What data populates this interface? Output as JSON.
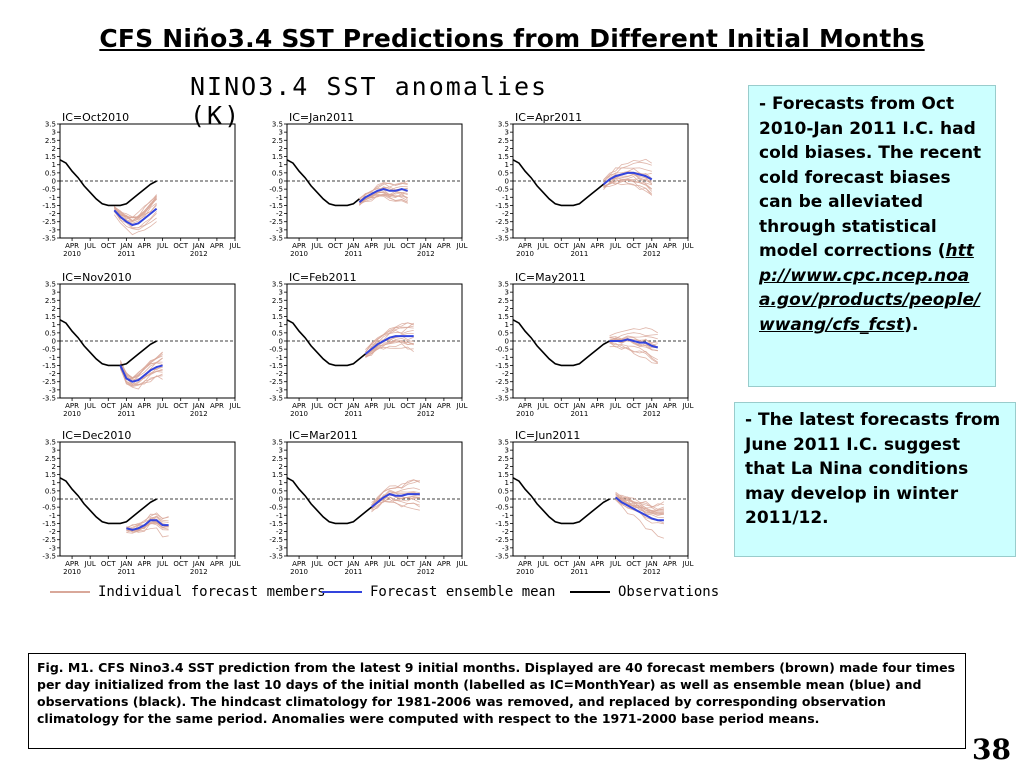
{
  "slide": {
    "title": "CFS Niño3.4 SST Predictions from Different Initial Months",
    "page_number": "38"
  },
  "figure": {
    "title": "NINO3.4 SST anomalies (K)"
  },
  "legend": {
    "members": "Individual forecast members",
    "mean": "Forecast ensemble mean",
    "obs": "Observations",
    "member_color": "#d9a89a",
    "mean_color": "#3344dd",
    "obs_color": "#000000"
  },
  "notes": {
    "note1_dash": "- ",
    "note1_text": "Forecasts from Oct 2010-Jan 2011 I.C. had cold biases. The recent cold forecast biases can be alleviated through statistical model corrections (",
    "note1_link": "http://www.cpc.ncep.noaa.gov/products/people/wwang/cfs_fcst",
    "note1_end": ").",
    "note2_dash": "- ",
    "note2_text": "The latest forecasts from June 2011 I.C. suggest that La Nina conditions may develop in winter 2011/12."
  },
  "caption": "Fig. M1. CFS Nino3.4 SST prediction from the latest 9 initial months. Displayed are 40 forecast members (brown) made four times per day initialized from the last 10 days of the initial month (labelled as IC=MonthYear) as well as ensemble mean (blue) and observations (black). The hindcast climatology for 1981-2006 was removed, and replaced by corresponding observation climatology for the same period. Anomalies were computed with respect to the 1971-2000 base period means.",
  "chart_data": {
    "type": "line",
    "title": "NINO3.4 SST anomalies (K)",
    "y_ticks": [
      "3.5",
      "3",
      "2.5",
      "2",
      "1.5",
      "1",
      "0.5",
      "0",
      "-0.5",
      "-1",
      "-1.5",
      "-2",
      "-2.5",
      "-3",
      "-3.5"
    ],
    "ylim": [
      -3.5,
      3.5
    ],
    "x_tick_labels": [
      "APR",
      "JUL",
      "OCT",
      "JAN",
      "APR",
      "JUL",
      "OCT",
      "JAN",
      "APR",
      "JUL"
    ],
    "x_year_labels": [
      {
        "label": "2010",
        "index": 0
      },
      {
        "label": "2011",
        "index": 3
      },
      {
        "label": "2012",
        "index": 7
      }
    ],
    "x_months": [
      "2010-04",
      "2010-07",
      "2010-10",
      "2011-01",
      "2011-04",
      "2011-07",
      "2011-10",
      "2012-01",
      "2012-04",
      "2012-07"
    ],
    "zero_line": "dashed",
    "observations": {
      "x": [
        "2010-02",
        "2010-03",
        "2010-04",
        "2010-05",
        "2010-06",
        "2010-07",
        "2010-08",
        "2010-09",
        "2010-10",
        "2010-11",
        "2010-12",
        "2011-01",
        "2011-02",
        "2011-03",
        "2011-04",
        "2011-05",
        "2011-06"
      ],
      "y": [
        1.3,
        1.1,
        0.6,
        0.2,
        -0.3,
        -0.7,
        -1.1,
        -1.4,
        -1.5,
        -1.5,
        -1.5,
        -1.4,
        -1.1,
        -0.8,
        -0.5,
        -0.2,
        0.0
      ]
    },
    "panels": [
      {
        "ic": "IC=Oct2010",
        "obs_end": "2011-06",
        "mean_start": "2010-11",
        "mean": [
          -1.8,
          -2.2,
          -2.5,
          -2.7,
          -2.6,
          -2.3,
          -2.0,
          -1.7
        ],
        "spread": 0.7
      },
      {
        "ic": "IC=Jan2011",
        "obs_end": "2011-02",
        "mean_start": "2011-02",
        "mean": [
          -1.3,
          -1.0,
          -0.8,
          -0.6,
          -0.5,
          -0.6,
          -0.6,
          -0.5,
          -0.6
        ],
        "spread": 0.7
      },
      {
        "ic": "IC=Apr2011",
        "obs_end": "2011-05",
        "mean_start": "2011-05",
        "mean": [
          -0.2,
          0.1,
          0.3,
          0.4,
          0.5,
          0.5,
          0.4,
          0.3,
          0.1
        ],
        "spread": 0.8
      },
      {
        "ic": "IC=Nov2010",
        "obs_end": "2011-06",
        "mean_start": "2010-12",
        "mean": [
          -1.5,
          -2.3,
          -2.5,
          -2.4,
          -2.1,
          -1.8,
          -1.6,
          -1.5
        ],
        "spread": 0.7
      },
      {
        "ic": "IC=Feb2011",
        "obs_end": "2011-03",
        "mean_start": "2011-03",
        "mean": [
          -0.8,
          -0.5,
          -0.2,
          0.0,
          0.2,
          0.3,
          0.3,
          0.3,
          0.3
        ],
        "spread": 0.7
      },
      {
        "ic": "IC=May2011",
        "obs_end": "2011-06",
        "mean_start": "2011-06",
        "mean": [
          0.0,
          0.0,
          0.0,
          0.1,
          0.0,
          -0.1,
          -0.1,
          -0.3,
          -0.4
        ],
        "spread": 0.8
      },
      {
        "ic": "IC=Dec2010",
        "obs_end": "2011-06",
        "mean_start": "2011-01",
        "mean": [
          -1.8,
          -1.9,
          -1.8,
          -1.6,
          -1.3,
          -1.3,
          -1.6,
          -1.6
        ],
        "spread": 0.6
      },
      {
        "ic": "IC=Mar2011",
        "obs_end": "2011-04",
        "mean_start": "2011-04",
        "mean": [
          -0.5,
          -0.2,
          0.1,
          0.3,
          0.2,
          0.2,
          0.3,
          0.3,
          0.3
        ],
        "spread": 0.7
      },
      {
        "ic": "IC=Jun2011",
        "obs_end": "2011-07",
        "mean_start": "2011-07",
        "mean": [
          0.1,
          -0.2,
          -0.4,
          -0.6,
          -0.8,
          -1.0,
          -1.2,
          -1.3,
          -1.3
        ],
        "spread": 0.8
      }
    ]
  }
}
